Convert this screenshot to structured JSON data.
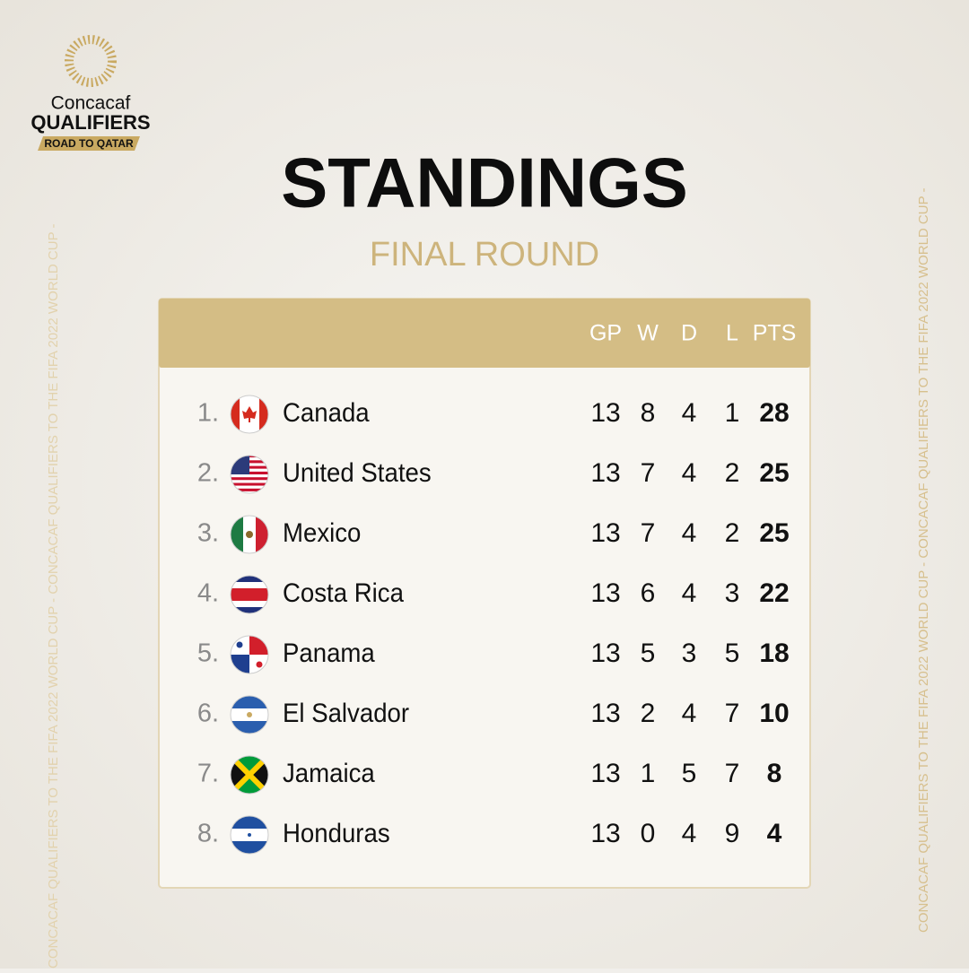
{
  "logo": {
    "name": "Concacaf",
    "event": "QUALIFIERS",
    "tagline": "ROAD TO QATAR"
  },
  "header": {
    "title": "STANDINGS",
    "subtitle": "FINAL ROUND"
  },
  "side_text": "CONCACAF QUALIFIERS TO THE FIFA 2022 WORLD CUP - CONCACAF QUALIFIERS TO THE FIFA 2022 WORLD CUP -",
  "table": {
    "columns": [
      "GP",
      "W",
      "D",
      "L",
      "PTS"
    ],
    "rows": [
      {
        "rank": "1.",
        "team": "Canada",
        "stats": [
          13,
          8,
          4,
          1,
          28
        ]
      },
      {
        "rank": "2.",
        "team": "United States",
        "stats": [
          13,
          7,
          4,
          2,
          25
        ]
      },
      {
        "rank": "3.",
        "team": "Mexico",
        "stats": [
          13,
          7,
          4,
          2,
          25
        ]
      },
      {
        "rank": "4.",
        "team": "Costa Rica",
        "stats": [
          13,
          6,
          4,
          3,
          22
        ]
      },
      {
        "rank": "5.",
        "team": "Panama",
        "stats": [
          13,
          5,
          3,
          5,
          18
        ]
      },
      {
        "rank": "6.",
        "team": "El Salvador",
        "stats": [
          13,
          2,
          4,
          7,
          10
        ]
      },
      {
        "rank": "7.",
        "team": "Jamaica",
        "stats": [
          13,
          1,
          5,
          7,
          8
        ]
      },
      {
        "rank": "8.",
        "team": "Honduras",
        "stats": [
          13,
          0,
          4,
          9,
          4
        ]
      }
    ]
  }
}
